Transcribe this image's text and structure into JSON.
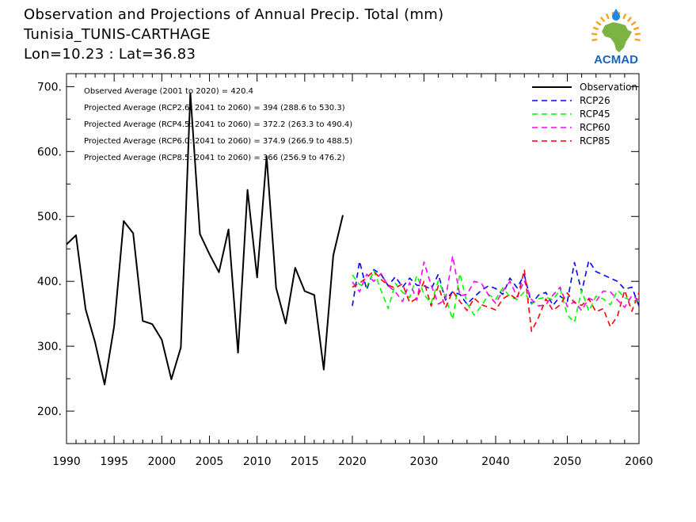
{
  "header": {
    "title": "Observation and Projections of Annual Precip. Total (mm)",
    "location": "Tunisia_TUNIS-CARTHAGE",
    "coords": "Lon=10.23 : Lat=36.83"
  },
  "logo": {
    "text": "ACMAD",
    "colors": {
      "africa": "#7cb342",
      "rays": "#f5a623",
      "drop": "#1e88e5",
      "text": "#1565c0"
    }
  },
  "chart_data": {
    "type": "line",
    "annotations": [
      "Observed Average (2001 to 2020) = 420.4",
      "Projected Average (RCP2.6: 2041 to 2060) = 394 (288.6 to 530.3)",
      "Projected Average (RCP4.5: 2041 to 2060) = 372.2 (263.3 to 490.4)",
      "Projected Average (RCP6.0: 2041 to 2060) = 374.9 (266.9 to 488.5)",
      "Projected Average (RCP8.5: 2041 to 2060) = 366 (256.9 to 476.2)"
    ],
    "xlim": [
      1990,
      2060
    ],
    "ylim": [
      150,
      720
    ],
    "x_ticks": [
      1990,
      1995,
      2000,
      2005,
      2010,
      2015,
      2020,
      2030,
      2040,
      2050,
      2060
    ],
    "x_tick_labels": [
      "1990",
      "1995",
      "2000",
      "2005",
      "2010",
      "2015",
      "2020",
      "2030",
      "2040",
      "2050",
      "2060"
    ],
    "y_ticks": [
      200,
      300,
      400,
      500,
      600,
      700
    ],
    "y_tick_labels": [
      "200.",
      "300.",
      "400.",
      "500.",
      "600.",
      "700."
    ],
    "legend_position": "top-right",
    "series": [
      {
        "name": "Observation",
        "color": "#000000",
        "dash": "solid",
        "x": [
          1990,
          1991,
          1992,
          1993,
          1994,
          1995,
          1996,
          1997,
          1998,
          1999,
          2000,
          2001,
          2002,
          2003,
          2004,
          2005,
          2006,
          2007,
          2008,
          2009,
          2010,
          2011,
          2012,
          2013,
          2014,
          2015,
          2016,
          2017,
          2018,
          2019
        ],
        "y": [
          457,
          471,
          357,
          306,
          241,
          331,
          493,
          474,
          339,
          334,
          310,
          249,
          298,
          690,
          473,
          442,
          414,
          480,
          290,
          541,
          406,
          593,
          390,
          335,
          421,
          385,
          379,
          264,
          440,
          502
        ]
      },
      {
        "name": "RCP26",
        "color": "#0000ff",
        "dash": "dashed",
        "x": [
          2020,
          2021,
          2022,
          2023,
          2024,
          2025,
          2026,
          2027,
          2028,
          2029,
          2030,
          2031,
          2032,
          2033,
          2034,
          2035,
          2036,
          2037,
          2038,
          2039,
          2040,
          2041,
          2042,
          2043,
          2044,
          2045,
          2046,
          2047,
          2048,
          2049,
          2050,
          2051,
          2052,
          2053,
          2054,
          2055,
          2056,
          2057,
          2058,
          2059,
          2060
        ],
        "y": [
          362,
          431,
          387,
          418,
          411,
          393,
          407,
          391,
          405,
          394,
          393,
          388,
          411,
          371,
          384,
          380,
          365,
          376,
          386,
          393,
          389,
          380,
          405,
          390,
          410,
          365,
          379,
          383,
          363,
          377,
          369,
          429,
          384,
          432,
          415,
          410,
          405,
          400,
          388,
          391,
          362
        ]
      },
      {
        "name": "RCP45",
        "color": "#00ff00",
        "dash": "dashed",
        "x": [
          2020,
          2021,
          2022,
          2023,
          2024,
          2025,
          2026,
          2027,
          2028,
          2029,
          2030,
          2031,
          2032,
          2033,
          2034,
          2035,
          2036,
          2037,
          2038,
          2039,
          2040,
          2041,
          2042,
          2043,
          2044,
          2045,
          2046,
          2047,
          2048,
          2049,
          2050,
          2051,
          2052,
          2053,
          2054,
          2055,
          2056,
          2057,
          2058,
          2059,
          2060
        ],
        "y": [
          410,
          395,
          391,
          417,
          386,
          358,
          397,
          383,
          375,
          409,
          380,
          366,
          401,
          376,
          341,
          412,
          366,
          348,
          362,
          380,
          372,
          390,
          376,
          372,
          384,
          365,
          373,
          376,
          371,
          388,
          348,
          337,
          386,
          354,
          377,
          373,
          364,
          386,
          375,
          370,
          370
        ]
      },
      {
        "name": "RCP60",
        "color": "#ff00ff",
        "dash": "dashed",
        "x": [
          2020,
          2021,
          2022,
          2023,
          2024,
          2025,
          2026,
          2027,
          2028,
          2029,
          2030,
          2031,
          2032,
          2033,
          2034,
          2035,
          2036,
          2037,
          2038,
          2039,
          2040,
          2041,
          2042,
          2043,
          2044,
          2045,
          2046,
          2047,
          2048,
          2049,
          2050,
          2051,
          2052,
          2053,
          2054,
          2055,
          2056,
          2057,
          2058,
          2059,
          2060
        ],
        "y": [
          399,
          384,
          411,
          400,
          412,
          393,
          384,
          369,
          398,
          371,
          430,
          394,
          365,
          372,
          439,
          378,
          380,
          400,
          397,
          379,
          366,
          385,
          400,
          376,
          401,
          372,
          362,
          364,
          379,
          391,
          361,
          369,
          355,
          374,
          369,
          385,
          384,
          371,
          360,
          378,
          371
        ]
      },
      {
        "name": "RCP85",
        "color": "#ff0000",
        "dash": "dashed",
        "x": [
          2020,
          2021,
          2022,
          2023,
          2024,
          2025,
          2026,
          2027,
          2028,
          2029,
          2030,
          2031,
          2032,
          2033,
          2034,
          2035,
          2036,
          2037,
          2038,
          2039,
          2040,
          2041,
          2042,
          2043,
          2044,
          2045,
          2046,
          2047,
          2048,
          2049,
          2050,
          2051,
          2052,
          2053,
          2054,
          2055,
          2056,
          2057,
          2058,
          2059,
          2060
        ],
        "y": [
          391,
          397,
          406,
          416,
          403,
          394,
          390,
          396,
          367,
          374,
          400,
          362,
          393,
          359,
          385,
          369,
          355,
          374,
          364,
          360,
          356,
          373,
          380,
          372,
          418,
          323,
          345,
          373,
          355,
          364,
          382,
          367,
          363,
          373,
          353,
          358,
          330,
          347,
          386,
          354,
          383
        ]
      }
    ]
  }
}
